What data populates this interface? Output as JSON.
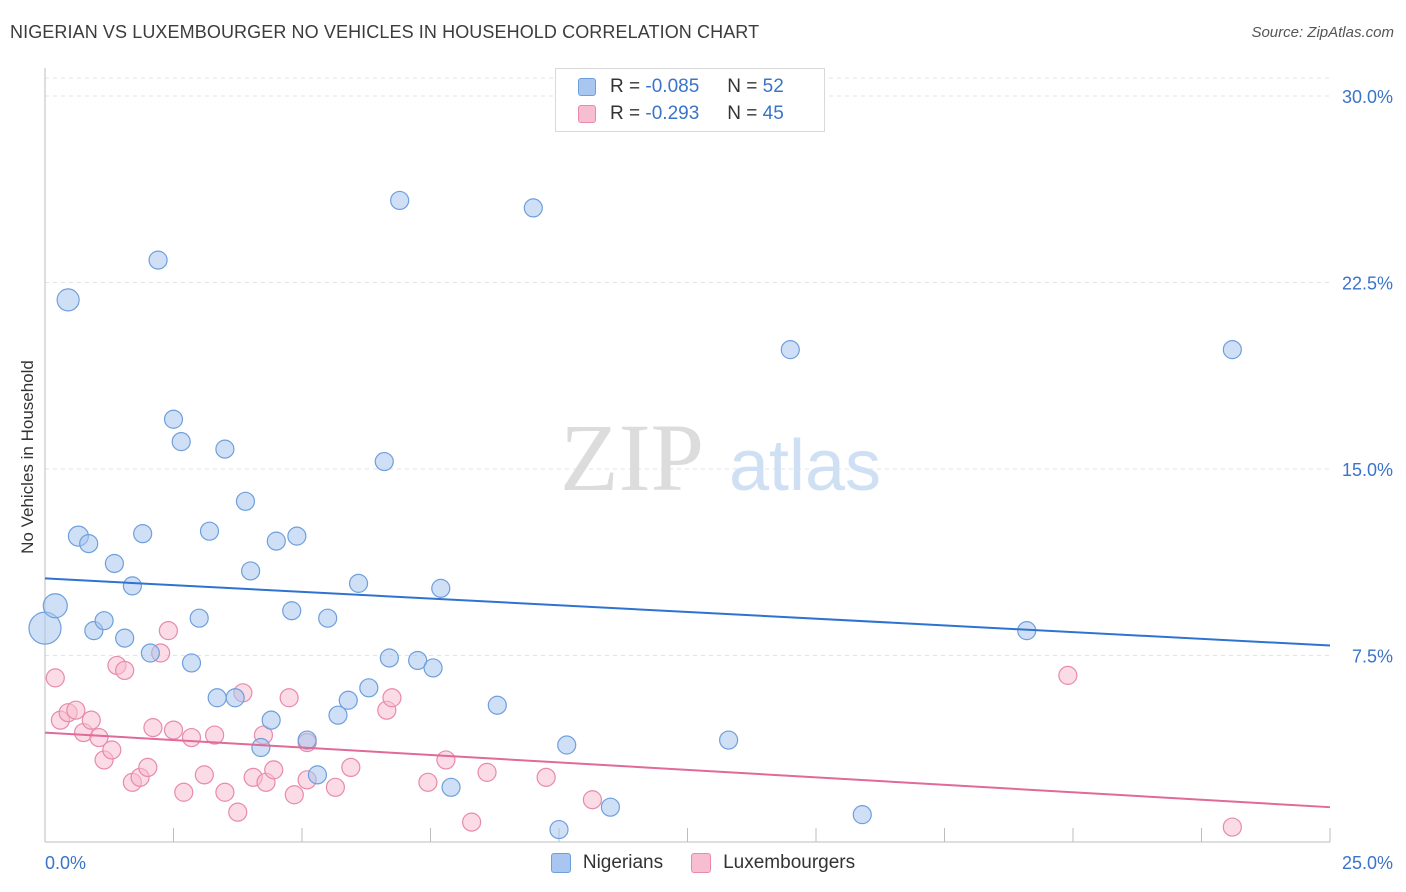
{
  "title": "NIGERIAN VS LUXEMBOURGER NO VEHICLES IN HOUSEHOLD CORRELATION CHART",
  "source": "Source: ZipAtlas.com",
  "watermark": {
    "zip": "ZIP",
    "atlas": "atlas"
  },
  "legend": {
    "rows": [
      {
        "r_label": "R =",
        "r_value": "-0.085",
        "n_label": "N =",
        "n_value": "52",
        "color": "#a8c6ef",
        "border": "#6e9fdc"
      },
      {
        "r_label": "R =",
        "r_value": "-0.293",
        "n_label": "N =",
        "n_value": "45",
        "color": "#f7bdd0",
        "border": "#e88aab"
      }
    ]
  },
  "chart_data": {
    "type": "scatter",
    "title": "NIGERIAN VS LUXEMBOURGER NO VEHICLES IN HOUSEHOLD CORRELATION CHART",
    "xlabel": "",
    "ylabel": "No Vehicles in Household",
    "xlim": [
      0,
      25
    ],
    "ylim": [
      0,
      31
    ],
    "x_tick_labels": [
      "0.0%",
      "25.0%"
    ],
    "y_ticks": [
      7.5,
      15.0,
      22.5,
      30.0
    ],
    "y_tick_labels": [
      "7.5%",
      "15.0%",
      "22.5%",
      "30.0%"
    ],
    "grid": true,
    "legend_position": "bottom",
    "series": [
      {
        "name": "Nigerians",
        "color": "#a8c6ef",
        "stroke": "#6e9fdc",
        "line_color": "#2f73d0",
        "trend": {
          "x0": 0,
          "y0": 10.6,
          "x1": 25,
          "y1": 7.9
        },
        "points": [
          [
            0.0,
            8.6,
            16
          ],
          [
            0.2,
            9.5,
            12
          ],
          [
            0.45,
            21.8,
            11
          ],
          [
            0.65,
            12.3,
            10
          ],
          [
            0.85,
            12.0,
            9
          ],
          [
            0.95,
            8.5,
            9
          ],
          [
            1.15,
            8.9,
            9
          ],
          [
            1.35,
            11.2,
            9
          ],
          [
            1.55,
            8.2,
            9
          ],
          [
            1.7,
            10.3,
            9
          ],
          [
            1.9,
            12.4,
            9
          ],
          [
            2.05,
            7.6,
            9
          ],
          [
            2.2,
            23.4,
            9
          ],
          [
            2.5,
            17.0,
            9
          ],
          [
            2.65,
            16.1,
            9
          ],
          [
            2.85,
            7.2,
            9
          ],
          [
            3.0,
            9.0,
            9
          ],
          [
            3.2,
            12.5,
            9
          ],
          [
            3.35,
            5.8,
            9
          ],
          [
            3.5,
            15.8,
            9
          ],
          [
            3.7,
            5.8,
            9
          ],
          [
            3.9,
            13.7,
            9
          ],
          [
            4.0,
            10.9,
            9
          ],
          [
            4.2,
            3.8,
            9
          ],
          [
            4.4,
            4.9,
            9
          ],
          [
            4.5,
            12.1,
            9
          ],
          [
            4.8,
            9.3,
            9
          ],
          [
            4.9,
            12.3,
            9
          ],
          [
            5.1,
            4.1,
            9
          ],
          [
            5.3,
            2.7,
            9
          ],
          [
            5.5,
            9.0,
            9
          ],
          [
            5.7,
            5.1,
            9
          ],
          [
            5.9,
            5.7,
            9
          ],
          [
            6.1,
            10.4,
            9
          ],
          [
            6.3,
            6.2,
            9
          ],
          [
            6.6,
            15.3,
            9
          ],
          [
            6.7,
            7.4,
            9
          ],
          [
            6.9,
            25.8,
            9
          ],
          [
            7.25,
            7.3,
            9
          ],
          [
            7.55,
            7.0,
            9
          ],
          [
            7.7,
            10.2,
            9
          ],
          [
            7.9,
            2.2,
            9
          ],
          [
            8.8,
            5.5,
            9
          ],
          [
            9.5,
            25.5,
            9
          ],
          [
            10.0,
            0.5,
            9
          ],
          [
            10.15,
            3.9,
            9
          ],
          [
            11.0,
            1.4,
            9
          ],
          [
            13.3,
            4.1,
            9
          ],
          [
            14.5,
            19.8,
            9
          ],
          [
            15.9,
            1.1,
            9
          ],
          [
            19.1,
            8.5,
            9
          ],
          [
            23.1,
            19.8,
            9
          ]
        ]
      },
      {
        "name": "Luxembourgers",
        "color": "#f7bdd0",
        "stroke": "#e88aab",
        "line_color": "#e06a98",
        "trend": {
          "x0": 0,
          "y0": 4.4,
          "x1": 25,
          "y1": 1.4
        },
        "points": [
          [
            0.2,
            6.6,
            9
          ],
          [
            0.3,
            4.9,
            9
          ],
          [
            0.45,
            5.2,
            9
          ],
          [
            0.6,
            5.3,
            9
          ],
          [
            0.75,
            4.4,
            9
          ],
          [
            0.9,
            4.9,
            9
          ],
          [
            1.05,
            4.2,
            9
          ],
          [
            1.15,
            3.3,
            9
          ],
          [
            1.3,
            3.7,
            9
          ],
          [
            1.4,
            7.1,
            9
          ],
          [
            1.55,
            6.9,
            9
          ],
          [
            1.7,
            2.4,
            9
          ],
          [
            1.85,
            2.6,
            9
          ],
          [
            2.0,
            3.0,
            9
          ],
          [
            2.1,
            4.6,
            9
          ],
          [
            2.25,
            7.6,
            9
          ],
          [
            2.4,
            8.5,
            9
          ],
          [
            2.5,
            4.5,
            9
          ],
          [
            2.7,
            2.0,
            9
          ],
          [
            2.85,
            4.2,
            9
          ],
          [
            3.1,
            2.7,
            9
          ],
          [
            3.3,
            4.3,
            9
          ],
          [
            3.5,
            2.0,
            9
          ],
          [
            3.75,
            1.2,
            9
          ],
          [
            3.85,
            6.0,
            9
          ],
          [
            4.05,
            2.6,
            9
          ],
          [
            4.25,
            4.3,
            9
          ],
          [
            4.3,
            2.4,
            9
          ],
          [
            4.45,
            2.9,
            9
          ],
          [
            4.75,
            5.8,
            9
          ],
          [
            4.85,
            1.9,
            9
          ],
          [
            5.1,
            2.5,
            9
          ],
          [
            5.1,
            4.0,
            9
          ],
          [
            5.65,
            2.2,
            9
          ],
          [
            5.95,
            3.0,
            9
          ],
          [
            6.65,
            5.3,
            9
          ],
          [
            6.75,
            5.8,
            9
          ],
          [
            7.45,
            2.4,
            9
          ],
          [
            7.8,
            3.3,
            9
          ],
          [
            8.3,
            0.8,
            9
          ],
          [
            8.6,
            2.8,
            9
          ],
          [
            9.75,
            2.6,
            9
          ],
          [
            10.65,
            1.7,
            9
          ],
          [
            19.9,
            6.7,
            9
          ],
          [
            23.1,
            0.6,
            9
          ]
        ]
      }
    ]
  }
}
